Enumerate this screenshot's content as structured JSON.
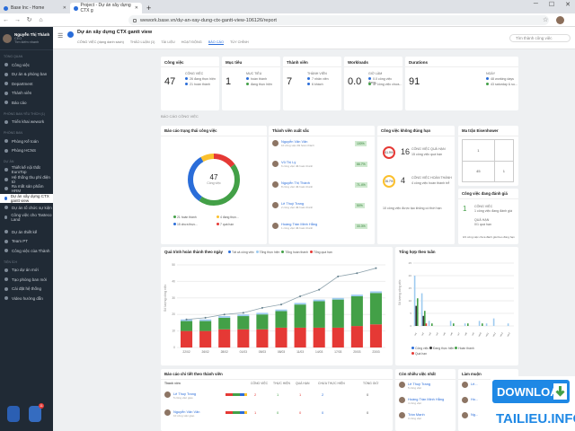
{
  "browser": {
    "tabs": [
      {
        "label": "Base Inc - Home"
      },
      {
        "label": "Project - Dự án xây dựng CTX g"
      }
    ],
    "url": "wework.base.vn/dự-an-xay-dung-ctx-gantt-view-106126/report"
  },
  "sidebar": {
    "user": {
      "name": "Nguyễn Thị Thành",
      "sub": "CEO"
    },
    "company": "Tìm kiếm nhanh",
    "groups": [
      {
        "title": "TỔNG QUAN",
        "items": [
          "Công việc",
          "Dự án & phòng ban",
          "Department",
          "Thành viên",
          "Báo cáo"
        ]
      },
      {
        "title": "PHÒNG BAN YÊU THÍCH (1)",
        "items": [
          "Triển khai wework"
        ]
      },
      {
        "title": "PHÒNG BAN",
        "items": [
          "Phòng Kế toán",
          "Phòng HCNS"
        ]
      },
      {
        "title": "DỰ ÁN",
        "items": [
          "Thiết kế nội thất EuroTop",
          "Hệ thống thu phí điện tử",
          "Ra mắt sản phẩm HRM",
          "Dự án xây dựng CTX gantt view",
          "Dự án tổ chức sự kiện",
          "Công việc cho Tasteco Land"
        ]
      },
      {
        "title": "",
        "items": [
          "Dự án thiết kế",
          "Team PT",
          "Công việc của Thành"
        ]
      },
      {
        "title": "TIỆN ÍCH",
        "items": [
          "Tạo dự án mới",
          "Tạo phòng ban mới",
          "Cài đặt hệ thống",
          "Video hướng dẫn"
        ]
      }
    ],
    "badge": "11"
  },
  "header": {
    "title": "Dự án xây dựng CTX gantt view",
    "tabs": [
      "CÔNG VIỆC (dạng danh sách)",
      "THẢO LUẬN (1)",
      "TÀI LIỆU",
      "HOẠT ĐỘNG",
      "BÁO CÁO",
      "TÙY CHỈNH"
    ],
    "search_placeholder": "Tìm thành công việc"
  },
  "kpis": [
    {
      "title": "Công việc",
      "value": "47",
      "lines": [
        "CÔNG VIỆC",
        "26 đang thực hiện",
        "21 hoàn thành"
      ]
    },
    {
      "title": "Mục tiêu",
      "value": "1",
      "lines": [
        "MỤC TIÊU",
        "hoàn thành",
        "đang thực hiện"
      ]
    },
    {
      "title": "Thành viên",
      "value": "7",
      "lines": [
        "THÀNH VIÊN",
        "7 nhân viên",
        "6 khách"
      ]
    },
    {
      "title": "Workloads",
      "value": "0.0",
      "lines": [
        "GIỜ LÀM",
        "0.0 công việc đang...",
        "47 công việc chưa..."
      ]
    },
    {
      "title": "Durations",
      "value": "91",
      "lines": [
        "NGÀY",
        "48 working days",
        "43 saturday & su..."
      ]
    }
  ],
  "section_label": "BÁO CÁO CÔNG VIỆC",
  "status_card": {
    "title": "Báo cáo trạng thái công việc",
    "center": "47",
    "center_sub": "Công việc",
    "legend": [
      "21 hoàn thành",
      "4 đang thực...",
      "15 chưa thực...",
      "7 quá hạn"
    ]
  },
  "members": {
    "title": "Thành viên xuất sắc",
    "rows": [
      {
        "name": "Nguyễn Văn Văn",
        "sub": "10 công việc đã hoàn thành",
        "pct": "100%"
      },
      {
        "name": "Vũ Thị Lý",
        "sub": "6 công việc đã hoàn thành",
        "pct": "66.7%"
      },
      {
        "name": "Nguyễn Thị Thành",
        "sub": "8 công việc đã hoàn thành",
        "pct": "71.4%"
      },
      {
        "name": "Lê Thuý Trang",
        "sub": "2 công việc đã hoàn thành",
        "pct": "50%"
      },
      {
        "name": "Hoàng Trần Minh Hằng",
        "sub": "1 công việc đã hoàn thành",
        "pct": "33.3%"
      }
    ]
  },
  "overdue": {
    "title": "Công việc không đúng hạn",
    "r1": "61.9%",
    "v1": "16",
    "r2": "26.7%",
    "v2": "4",
    "lines": [
      "CÔNG VIỆC QUÁ HẠN",
      "15 công việc quá hạn",
      "CÔNG VIỆC HOÀN THÀNH",
      "4 công việc hoàn thành trễ"
    ],
    "foot": "10 công việc được tạo không có thời hạn"
  },
  "eisen": {
    "title": "Ma trận Eisenhower",
    "cells": [
      "1",
      "",
      "45",
      "1"
    ],
    "label": "Khẩn cấp"
  },
  "eval": {
    "title": "Công việc đang đánh giá",
    "v1": "1",
    "l1": "CÔNG VIỆC",
    "l1b": "1 công việc đang đánh giá",
    "v2": "0/1",
    "l2": "QUÁ HẠN",
    "l2b": "0/1 quá hạn"
  },
  "footnote": "0/1 công việc chưa đánh giá theo đúng hạn",
  "footnote2": "0/1",
  "progress": {
    "title": "Quá trình hoàn thành theo ngày",
    "legend": [
      "Tất cả công việc",
      "Tổng thực hiện",
      "Tổng hoàn thành",
      "Tổng quá hạn"
    ],
    "ylabel": "Số lượng công việc"
  },
  "weekly": {
    "title": "Tổng hợp theo tuần",
    "legend": [
      "Công việc",
      "Đang thực hiện",
      "Hoàn thành",
      "Quá hạn"
    ],
    "ylabel": "Số lượng công việc"
  },
  "bottom": {
    "t1": "Báo cáo chi tiết theo thành viên",
    "cols": [
      "Thành viên",
      "",
      "CÔNG VIỆC",
      "THỰC HIỆN",
      "QUÁ HẠN",
      "CHƯA THỰC HIỆN",
      "TỔNG GIỜ"
    ],
    "rows": [
      {
        "name": "Lê Thuý Trang",
        "sub": "5 công việc giao",
        "vals": [
          "2",
          "1",
          "1",
          "2",
          "0"
        ]
      },
      {
        "name": "Nguyễn Văn Văn",
        "sub": "10 công việc giao",
        "vals": [
          "1",
          "0",
          "0",
          "0",
          "0"
        ]
      }
    ],
    "t2": "Còn nhiều việc nhất",
    "list2": [
      "Lê Thuý Trang",
      "Hoàng Trần Minh Hằng",
      "Trần Mạnh"
    ],
    "list2sub": [
      "5 công việc",
      "4 công việc",
      "3 công việc"
    ],
    "t3": "Làm muộn",
    "list3": [
      "Lê...",
      "Ho...",
      "Ng..."
    ]
  },
  "watermark": {
    "main": "DOWNLOAD",
    "site": "TAILIEU.INFO"
  },
  "chart_data": [
    {
      "type": "line",
      "title": "Quá trình hoàn thành theo ngày",
      "x": [
        "22/02",
        "26/02",
        "28/02",
        "01/03",
        "05/03",
        "08/03",
        "11/03",
        "14/03",
        "17/03",
        "20/03",
        "23/03"
      ],
      "series": [
        {
          "name": "Tất cả công việc",
          "values": [
            17,
            18,
            20,
            21,
            24,
            26,
            31,
            35,
            43,
            45,
            48
          ]
        }
      ],
      "ylim": [
        0,
        50
      ]
    },
    {
      "type": "bar",
      "title": "Quá trình hoàn thành theo ngày",
      "categories": [
        "22/02",
        "26/02",
        "28/02",
        "01/03",
        "05/03",
        "08/03",
        "11/03",
        "14/03",
        "17/03",
        "20/03",
        "23/03"
      ],
      "series": [
        {
          "name": "Tổng quá hạn",
          "values": [
            10,
            10,
            11,
            11,
            11,
            12,
            12,
            12,
            12,
            13,
            14
          ]
        },
        {
          "name": "Tổng hoàn thành",
          "values": [
            6,
            6,
            7,
            8,
            9,
            10,
            14,
            16,
            17,
            18,
            19
          ]
        },
        {
          "name": "Tổng thực hiện",
          "values": [
            1,
            1,
            1,
            1,
            1,
            1,
            1,
            1,
            1,
            1,
            1
          ]
        }
      ],
      "ylim": [
        0,
        50
      ]
    },
    {
      "type": "bar",
      "title": "Tổng hợp theo tuần",
      "categories": [
        "w1",
        "w2",
        "w3",
        "w4",
        "w5",
        "w6",
        "w7",
        "w8",
        "w9",
        "w10",
        "w11",
        "w12",
        "w13",
        "w14"
      ],
      "series": [
        {
          "name": "Công việc",
          "values": [
            20,
            13,
            2,
            0,
            0,
            2,
            0,
            1,
            0,
            2,
            1,
            3,
            0,
            1
          ]
        },
        {
          "name": "Đang thực hiện",
          "values": [
            8,
            4,
            0,
            0,
            0,
            0,
            0,
            0,
            0,
            0,
            0,
            0,
            0,
            0
          ]
        },
        {
          "name": "Hoàn thành",
          "values": [
            11,
            6,
            1,
            0,
            0,
            1,
            0,
            1,
            0,
            1,
            0,
            0,
            0,
            0
          ]
        },
        {
          "name": "Quá hạn",
          "values": [
            0,
            1,
            0,
            0,
            0,
            0,
            0,
            0,
            0,
            0,
            0,
            0,
            0,
            0
          ]
        }
      ],
      "ylim": [
        0,
        25
      ]
    },
    {
      "type": "pie",
      "title": "Báo cáo trạng thái công việc",
      "categories": [
        "hoàn thành",
        "đang thực hiện",
        "chưa thực hiện",
        "quá hạn"
      ],
      "values": [
        21,
        4,
        15,
        7
      ]
    }
  ]
}
